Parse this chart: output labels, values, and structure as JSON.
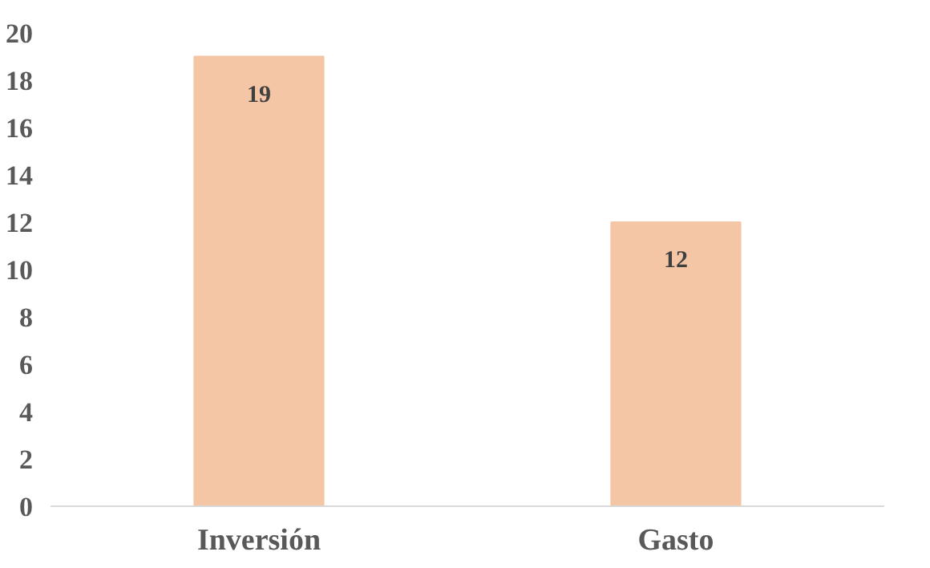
{
  "chart_data": {
    "type": "bar",
    "categories": [
      "Inversión",
      "Gasto"
    ],
    "values": [
      19,
      12
    ],
    "color": "#f5c6a5",
    "ylim": [
      0,
      20
    ],
    "yticks": [
      0,
      2,
      4,
      6,
      8,
      10,
      12,
      14,
      16,
      18,
      20
    ],
    "grid": false,
    "data_labels": true
  }
}
